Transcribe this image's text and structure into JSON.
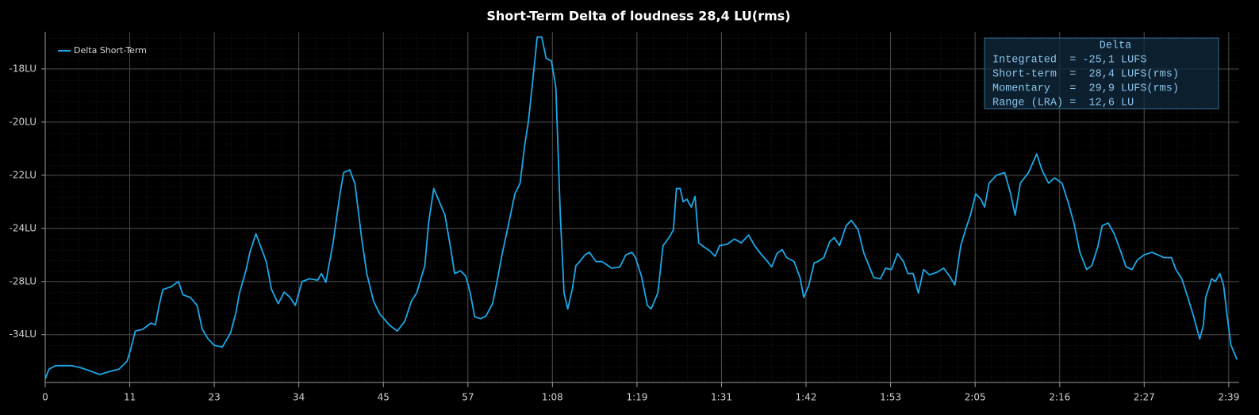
{
  "chart_data": {
    "type": "line",
    "title": "Short-Term Delta of loudness 28,4 LU(rms)",
    "grid": true,
    "legend": "upper left",
    "stats_title": "Delta",
    "stats_lines": [
      "Integrated  = -25,1 LUFS",
      "Short-term  =  28,4 LUFS(rms)",
      "Momentary   =  29,9 LUFS(rms)",
      "Range (LRA) =  12,6 LU"
    ],
    "xlim": [
      0,
      160.4
    ],
    "xticks": [
      0,
      {
        "value": 11.36,
        "label": "11"
      },
      {
        "value": 22.71,
        "label": "23"
      },
      {
        "value": 34.07,
        "label": "34"
      },
      {
        "value": 45.43,
        "label": "45"
      },
      {
        "value": 56.79,
        "label": "57"
      },
      {
        "value": 68.14,
        "label": "1:08"
      },
      {
        "value": 79.5,
        "label": "1:19"
      },
      {
        "value": 90.86,
        "label": "1:31"
      },
      {
        "value": 102.21,
        "label": "1:42"
      },
      {
        "value": 113.57,
        "label": "1:53"
      },
      {
        "value": 124.93,
        "label": "2:05"
      },
      {
        "value": 136.29,
        "label": "2:16"
      },
      {
        "value": 147.64,
        "label": "2:27"
      },
      {
        "value": 159,
        "label": "2:39"
      }
    ],
    "ylim": [
      -39.4,
      -16.6
    ],
    "yticks": [
      {
        "value": -34,
        "label": "-34LU"
      },
      {
        "value": -28,
        "label": "-28LU"
      },
      {
        "value": -24,
        "label": "-24LU"
      },
      {
        "value": -22,
        "label": "-22LU"
      },
      {
        "value": -20,
        "label": "-20LU"
      },
      {
        "value": -18,
        "label": "-18LU"
      }
    ],
    "x": [
      0,
      0.5,
      1.4,
      3.5,
      4.6,
      5.7,
      7.3,
      8.9,
      9.9,
      11.0,
      11.5,
      12.1,
      13.1,
      14.2,
      14.8,
      15.3,
      15.8,
      16.9,
      17.9,
      18.5,
      19.5,
      20.4,
      21.1,
      21.9,
      22.7,
      23.8,
      24.9,
      25.6,
      26.1,
      27.0,
      27.5,
      28.3,
      29.1,
      29.7,
      30.4,
      31.3,
      32.1,
      32.9,
      33.6,
      34.5,
      35.5,
      36.6,
      37.1,
      37.7,
      38.7,
      39.6,
      40.1,
      40.9,
      41.6,
      42.5,
      43.2,
      44.1,
      44.9,
      46.2,
      47.3,
      48.3,
      49.2,
      49.9,
      51.0,
      51.5,
      52.2,
      52.8,
      53.7,
      54.5,
      55.0,
      55.8,
      56.5,
      57.1,
      57.7,
      58.5,
      59.2,
      60.1,
      60.7,
      61.4,
      62.2,
      63.1,
      63.8,
      64.4,
      64.9,
      65.4,
      66.1,
      66.7,
      67.3,
      68.0,
      68.6,
      69.2,
      69.7,
      70.2,
      70.8,
      71.3,
      71.8,
      72.5,
      73.1,
      74.0,
      74.8,
      75.6,
      76.1,
      77.2,
      78.0,
      78.8,
      79.3,
      80.1,
      80.9,
      81.4,
      82.3,
      83.0,
      83.8,
      84.4,
      84.8,
      85.3,
      85.7,
      86.2,
      86.8,
      87.3,
      87.8,
      88.5,
      89.3,
      90.0,
      90.6,
      91.6,
      92.6,
      93.5,
      94.5,
      95.3,
      96.1,
      96.9,
      97.6,
      98.3,
      99.0,
      99.6,
      100.6,
      101.4,
      101.9,
      102.6,
      103.3,
      103.8,
      104.6,
      105.4,
      106.0,
      106.7,
      107.6,
      108.3,
      109.2,
      110.0,
      110.8,
      111.3,
      112.2,
      112.9,
      113.7,
      114.5,
      115.3,
      115.9,
      116.6,
      117.3,
      118.0,
      118.8,
      119.8,
      120.7,
      121.5,
      122.2,
      123.0,
      123.7,
      124.3,
      125.0,
      125.7,
      126.2,
      126.8,
      127.8,
      128.9,
      129.7,
      130.3,
      131.0,
      132.1,
      133.2,
      133.9,
      134.8,
      135.6,
      136.6,
      137.4,
      138.2,
      139.0,
      139.9,
      140.6,
      141.4,
      142.0,
      142.8,
      143.6,
      144.4,
      145.2,
      146.0,
      146.7,
      147.6,
      148.7,
      149.5,
      150.3,
      151.3,
      151.9,
      152.7,
      153.5,
      154.3,
      155.1,
      155.6,
      155.9,
      156.7,
      157.2,
      157.8,
      158.3,
      158.8,
      159.3,
      160.1
    ],
    "series": [
      {
        "name": "Delta Short-Term",
        "color": "#1ba8e8",
        "values": [
          -39.0,
          -37.9,
          -37.5,
          -37.5,
          -37.7,
          -38.0,
          -38.5,
          -38.1,
          -37.9,
          -37.0,
          -35.6,
          -33.6,
          -33.4,
          -32.7,
          -32.9,
          -30.7,
          -28.9,
          -28.6,
          -28.0,
          -29.5,
          -29.8,
          -30.7,
          -33.4,
          -34.5,
          -35.2,
          -35.4,
          -33.8,
          -31.6,
          -29.3,
          -27.1,
          -25.8,
          -24.4,
          -25.6,
          -26.5,
          -28.9,
          -30.5,
          -29.2,
          -29.8,
          -30.7,
          -28.0,
          -27.8,
          -27.9,
          -27.4,
          -28.1,
          -25.0,
          -22.7,
          -21.9,
          -21.8,
          -22.3,
          -24.7,
          -27.4,
          -30.2,
          -31.6,
          -32.9,
          -33.6,
          -32.5,
          -30.2,
          -29.3,
          -26.8,
          -23.8,
          -22.5,
          -22.9,
          -23.5,
          -25.6,
          -27.4,
          -27.2,
          -27.6,
          -29.3,
          -32.0,
          -32.2,
          -31.9,
          -30.5,
          -28.0,
          -25.9,
          -23.9,
          -22.7,
          -22.3,
          -20.9,
          -20.0,
          -18.7,
          -16.8,
          -16.8,
          -17.6,
          -17.7,
          -18.7,
          -23.5,
          -29.3,
          -31.1,
          -28.9,
          -26.8,
          -26.5,
          -26.0,
          -25.8,
          -26.5,
          -26.5,
          -26.8,
          -27.0,
          -26.9,
          -26.0,
          -25.8,
          -26.2,
          -27.6,
          -30.7,
          -31.1,
          -29.3,
          -25.3,
          -24.7,
          -24.1,
          -22.5,
          -22.5,
          -23.0,
          -22.9,
          -23.2,
          -22.8,
          -25.1,
          -25.4,
          -25.7,
          -26.1,
          -25.3,
          -25.2,
          -24.8,
          -25.1,
          -24.5,
          -25.3,
          -25.9,
          -26.4,
          -26.9,
          -25.9,
          -25.6,
          -26.2,
          -26.5,
          -27.7,
          -29.8,
          -28.4,
          -26.6,
          -26.5,
          -26.2,
          -25.0,
          -24.7,
          -25.3,
          -23.9,
          -23.7,
          -24.1,
          -25.9,
          -27.0,
          -27.7,
          -27.8,
          -27.0,
          -27.1,
          -25.9,
          -26.5,
          -27.4,
          -27.4,
          -29.3,
          -27.1,
          -27.5,
          -27.3,
          -27.0,
          -27.6,
          -28.4,
          -25.3,
          -24.0,
          -23.5,
          -22.7,
          -22.9,
          -23.2,
          -22.3,
          -22.0,
          -21.9,
          -22.7,
          -23.5,
          -22.3,
          -21.9,
          -21.2,
          -21.8,
          -22.3,
          -22.1,
          -22.3,
          -23.0,
          -23.8,
          -25.8,
          -27.1,
          -26.8,
          -25.4,
          -23.9,
          -23.8,
          -24.4,
          -25.6,
          -26.9,
          -27.1,
          -26.4,
          -26.0,
          -25.8,
          -26.0,
          -26.2,
          -26.2,
          -27.1,
          -27.8,
          -29.8,
          -32.0,
          -34.5,
          -32.9,
          -29.8,
          -27.8,
          -28.0,
          -27.4,
          -28.4,
          -32.0,
          -35.2,
          -36.8
        ]
      }
    ]
  }
}
